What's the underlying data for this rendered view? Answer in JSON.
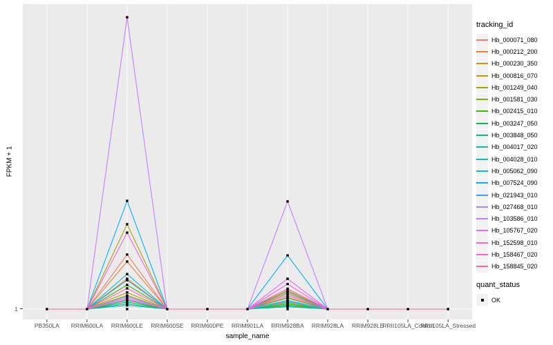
{
  "figure": {
    "background": "#FFFFFF",
    "panel_bg": "#EBEBEB",
    "grid_color": "#FFFFFF",
    "tick_color": "#333333",
    "tick_label_color": "#4D4D4D",
    "point_color": "#000000"
  },
  "axes": {
    "y_title": "FPKM + 1",
    "x_title": "sample_name",
    "y_tick": "1"
  },
  "legend": {
    "tracking_title": "tracking_id",
    "quant_title": "quant_status",
    "quant_entries": [
      {
        "label": "OK",
        "marker": "black-square"
      }
    ],
    "entries": [
      {
        "label": "Hb_000071_080",
        "color": "#F8766D"
      },
      {
        "label": "Hb_000212_200",
        "color": "#EA8331"
      },
      {
        "label": "Hb_000230_350",
        "color": "#D89000"
      },
      {
        "label": "Hb_000816_070",
        "color": "#C09B00"
      },
      {
        "label": "Hb_001249_040",
        "color": "#A3A500"
      },
      {
        "label": "Hb_001581_030",
        "color": "#7CAE00"
      },
      {
        "label": "Hb_002415_010",
        "color": "#39B600"
      },
      {
        "label": "Hb_003247_050",
        "color": "#00BB4E"
      },
      {
        "label": "Hb_003848_050",
        "color": "#00BF7D"
      },
      {
        "label": "Hb_004017_020",
        "color": "#00C1A3"
      },
      {
        "label": "Hb_004028_010",
        "color": "#00BFC4"
      },
      {
        "label": "Hb_005062_090",
        "color": "#00BAE0"
      },
      {
        "label": "Hb_007524_090",
        "color": "#00B0F6"
      },
      {
        "label": "Hb_021943_010",
        "color": "#35A2FF"
      },
      {
        "label": "Hb_027468_010",
        "color": "#9590FF"
      },
      {
        "label": "Hb_103586_010",
        "color": "#C77CFF"
      },
      {
        "label": "Hb_105767_020",
        "color": "#E76BF3"
      },
      {
        "label": "Hb_152598_010",
        "color": "#FA62DB"
      },
      {
        "label": "Hb_158467_020",
        "color": "#FF61CC"
      },
      {
        "label": "Hb_158845_020",
        "color": "#FF67A4"
      }
    ]
  },
  "chart_data": {
    "type": "line",
    "title": "",
    "xlabel": "sample_name",
    "ylabel": "FPKM + 1",
    "legend_position": "right",
    "grid": "vertical-major-white-on-grey",
    "categories": [
      "PB350LA",
      "RRIM600LA",
      "RRIM600LE",
      "RRIM600SE",
      "RRIM600PE",
      "RRIM901LA",
      "RRIM928BA",
      "RRIM928LA",
      "RRIM928LE",
      "RRII105LA_Control",
      "RRII105LA_Stressed"
    ],
    "y_axis": {
      "tick_labels": [
        "1"
      ],
      "baseline_value": 1
    },
    "value_scale": "values are peak heights as fraction of tallest peak; 0 = FPKM+1 of 1 (baseline); axis shows only tick '1'",
    "point_marker": "black-square",
    "series": [
      {
        "name": "Hb_000071_080",
        "color": "#F8766D",
        "values": [
          0,
          0,
          0.187,
          0,
          0,
          0,
          0.04,
          0,
          0,
          0,
          0
        ]
      },
      {
        "name": "Hb_000212_200",
        "color": "#EA8331",
        "values": [
          0,
          0,
          0.163,
          0,
          0,
          0,
          0.052,
          0,
          0,
          0,
          0
        ]
      },
      {
        "name": "Hb_000230_350",
        "color": "#D89000",
        "values": [
          0,
          0,
          0.104,
          0,
          0,
          0,
          0.062,
          0,
          0,
          0,
          0
        ]
      },
      {
        "name": "Hb_000816_070",
        "color": "#C09B00",
        "values": [
          0,
          0,
          0.057,
          0,
          0,
          0,
          0.02,
          0,
          0,
          0,
          0
        ]
      },
      {
        "name": "Hb_001249_040",
        "color": "#A3A500",
        "values": [
          0,
          0,
          0.291,
          0,
          0,
          0,
          0.064,
          0,
          0,
          0,
          0
        ]
      },
      {
        "name": "Hb_001581_030",
        "color": "#7CAE00",
        "values": [
          0,
          0,
          0.047,
          0,
          0,
          0,
          0.018,
          0,
          0,
          0,
          0
        ]
      },
      {
        "name": "Hb_002415_010",
        "color": "#39B600",
        "values": [
          0,
          0,
          0.083,
          0,
          0,
          0,
          0.038,
          0,
          0,
          0,
          0
        ]
      },
      {
        "name": "Hb_003247_050",
        "color": "#00BB4E",
        "values": [
          0,
          0,
          0.024,
          0,
          0,
          0,
          0.014,
          0,
          0,
          0,
          0
        ]
      },
      {
        "name": "Hb_003848_050",
        "color": "#00BF7D",
        "values": [
          0,
          0,
          0.018,
          0,
          0,
          0,
          0.01,
          0,
          0,
          0,
          0
        ]
      },
      {
        "name": "Hb_004017_020",
        "color": "#00C1A3",
        "values": [
          0,
          0,
          0.03,
          0,
          0,
          0,
          0.024,
          0,
          0,
          0,
          0
        ]
      },
      {
        "name": "Hb_004028_010",
        "color": "#00BFC4",
        "values": [
          0,
          0,
          0.013,
          0,
          0,
          0,
          0.008,
          0,
          0,
          0,
          0
        ]
      },
      {
        "name": "Hb_005062_090",
        "color": "#00BAE0",
        "values": [
          0,
          0,
          0.12,
          0,
          0,
          0,
          0.03,
          0,
          0,
          0,
          0
        ]
      },
      {
        "name": "Hb_007524_090",
        "color": "#00B0F6",
        "values": [
          0,
          0,
          0.371,
          0,
          0,
          0,
          0.184,
          0,
          0,
          0,
          0
        ]
      },
      {
        "name": "Hb_021943_010",
        "color": "#35A2FF",
        "values": [
          0,
          0,
          0.099,
          0,
          0,
          0,
          0.057,
          0,
          0,
          0,
          0
        ]
      },
      {
        "name": "Hb_027468_010",
        "color": "#9590FF",
        "values": [
          0,
          0,
          0.043,
          0,
          0,
          0,
          0.028,
          0,
          0,
          0,
          0
        ]
      },
      {
        "name": "Hb_103586_010",
        "color": "#C77CFF",
        "values": [
          0,
          0,
          1.0,
          0,
          0,
          0,
          0.369,
          0,
          0,
          0,
          0
        ]
      },
      {
        "name": "Hb_105767_020",
        "color": "#E76BF3",
        "values": [
          0,
          0,
          0.038,
          0,
          0,
          0,
          0.104,
          0,
          0,
          0,
          0
        ]
      },
      {
        "name": "Hb_152598_010",
        "color": "#FA62DB",
        "values": [
          0,
          0,
          0.262,
          0,
          0,
          0,
          0.086,
          0,
          0,
          0,
          0
        ]
      },
      {
        "name": "Hb_158467_020",
        "color": "#FF61CC",
        "values": [
          0,
          0,
          0.071,
          0,
          0,
          0,
          0.07,
          0,
          0,
          0,
          0
        ]
      },
      {
        "name": "Hb_158845_020",
        "color": "#FF67A4",
        "values": [
          0,
          0,
          0.033,
          0,
          0,
          0,
          0.046,
          0,
          0,
          0,
          0
        ]
      }
    ]
  }
}
